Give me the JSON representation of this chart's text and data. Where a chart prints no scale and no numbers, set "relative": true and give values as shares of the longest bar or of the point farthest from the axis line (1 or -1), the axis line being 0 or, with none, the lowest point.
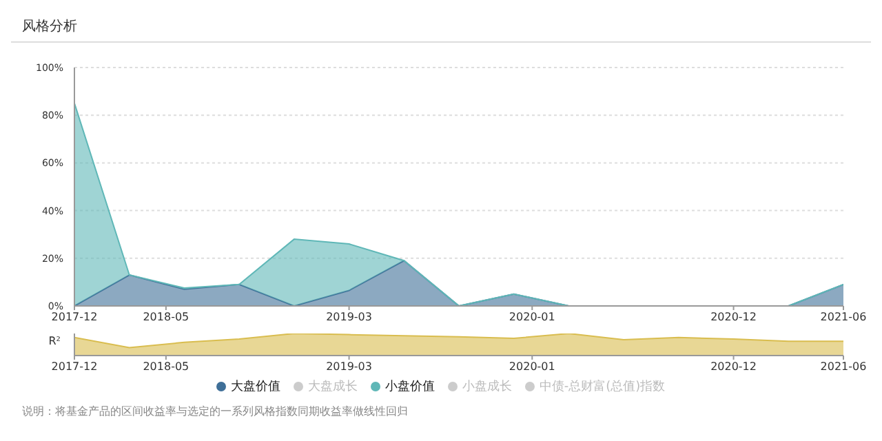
{
  "chart_data": [
    {
      "type": "area",
      "title": "风格分析",
      "stacked": true,
      "grid": "y",
      "legend": "bottom",
      "x": [
        "2017-12",
        "2018-03",
        "2018-06",
        "2018-09",
        "2018-12",
        "2019-03",
        "2019-06",
        "2019-09",
        "2019-12",
        "2020-03",
        "2020-06",
        "2020-09",
        "2020-12",
        "2021-03",
        "2021-06"
      ],
      "xlim": [
        "2017-12",
        "2021-06"
      ],
      "xticks": [
        "2017-12",
        "2018-05",
        "2019-03",
        "2020-01",
        "2020-12",
        "2021-06"
      ],
      "ylim": [
        0,
        100
      ],
      "yticks": [
        {
          "value": 0,
          "label": "0%"
        },
        {
          "value": 20,
          "label": "20%"
        },
        {
          "value": 40,
          "label": "40%"
        },
        {
          "value": 60,
          "label": "60%"
        },
        {
          "value": 80,
          "label": "80%"
        },
        {
          "value": 100,
          "label": "100%"
        }
      ],
      "series": [
        {
          "name": "大盘价值",
          "color": "#3f6f98",
          "values": [
            0,
            13,
            7,
            9,
            0,
            6.5,
            19,
            0,
            5,
            0,
            0,
            0,
            0,
            0,
            9
          ]
        },
        {
          "name": "大盘成长",
          "color": "#cccccc",
          "values": [
            null,
            null,
            null,
            null,
            null,
            null,
            null,
            null,
            null,
            null,
            null,
            null,
            null,
            null,
            null
          ]
        },
        {
          "name": "小盘价值",
          "color": "#5fb7b7",
          "values": [
            85,
            0,
            0.5,
            0,
            28,
            19.5,
            0,
            0,
            0,
            0,
            0,
            0,
            0,
            0,
            0
          ]
        },
        {
          "name": "小盘成长",
          "color": "#cccccc",
          "values": [
            null,
            null,
            null,
            null,
            null,
            null,
            null,
            null,
            null,
            null,
            null,
            null,
            null,
            null,
            null
          ]
        },
        {
          "name": "中债-总财富(总值)指数",
          "color": "#cccccc",
          "values": [
            null,
            null,
            null,
            null,
            null,
            null,
            null,
            null,
            null,
            null,
            null,
            null,
            null,
            null,
            null
          ]
        }
      ],
      "annotations": [
        "说明：将基金产品的区间收益率与选定的一系列风格指数同期收益率做线性回归"
      ]
    },
    {
      "type": "area",
      "ylabel": "R²",
      "relative": true,
      "x": [
        "2017-12",
        "2018-03",
        "2018-06",
        "2018-09",
        "2018-12",
        "2019-03",
        "2019-06",
        "2019-09",
        "2019-12",
        "2020-03",
        "2020-06",
        "2020-09",
        "2020-12",
        "2021-03",
        "2021-06"
      ],
      "xlim": [
        "2017-12",
        "2021-06"
      ],
      "xticks": [
        "2017-12",
        "2018-05",
        "2019-03",
        "2020-01",
        "2020-12",
        "2021-06"
      ],
      "series": [
        {
          "color": "#d9bd4f",
          "values": [
            0.82,
            0.36,
            0.6,
            0.75,
            1.0,
            0.95,
            0.9,
            0.85,
            0.78,
            1.0,
            0.72,
            0.82,
            0.75,
            0.65,
            0.65
          ]
        }
      ]
    }
  ]
}
